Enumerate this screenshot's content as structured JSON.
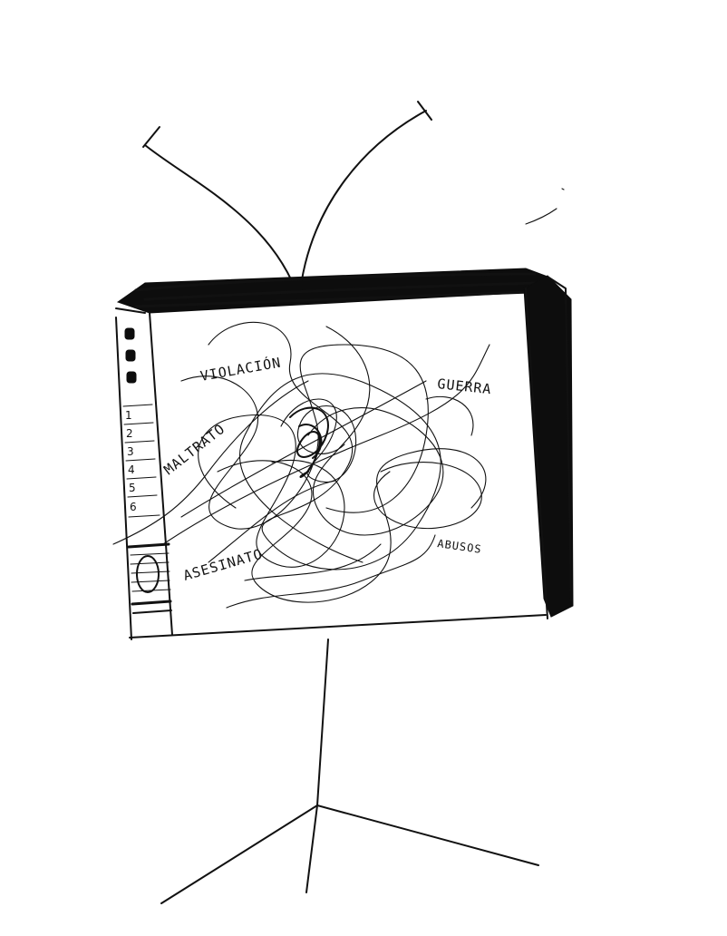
{
  "screen_words": {
    "word_1": "VIOLACIÓN",
    "word_2": "GUERRA",
    "word_3": "MALTRATO",
    "word_4": "ASESINATO",
    "word_5": "ABUSOS"
  },
  "side_panel_numbers": [
    "1",
    "2",
    "3",
    "4",
    "5",
    "6"
  ],
  "ink_color": "#111111",
  "icons": [
    "antenna-icon",
    "television-icon",
    "scribble-icon",
    "stand-icon",
    "speaker-icon"
  ]
}
